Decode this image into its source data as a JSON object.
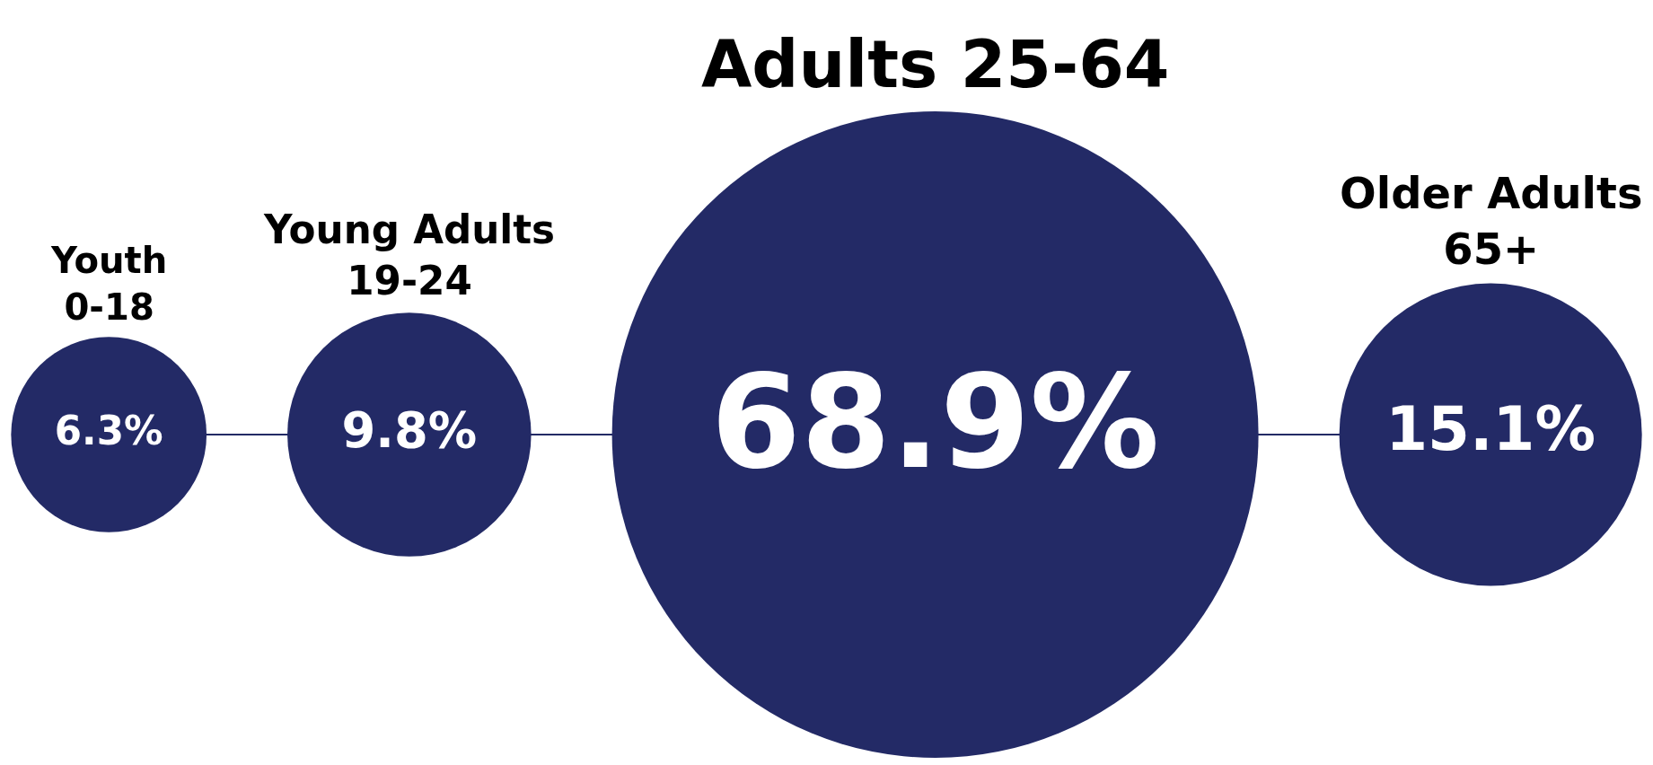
{
  "chart_data": {
    "type": "other",
    "categories": [
      "Youth\n0-18",
      "Young Adults\n19-24",
      "Adults 25-64",
      "Older Adults\n65+"
    ],
    "values": [
      6.3,
      9.8,
      68.9,
      15.1
    ],
    "value_labels": [
      "6.3%",
      "9.8%",
      "68.9%",
      "15.1%"
    ],
    "color": "#232a66"
  }
}
